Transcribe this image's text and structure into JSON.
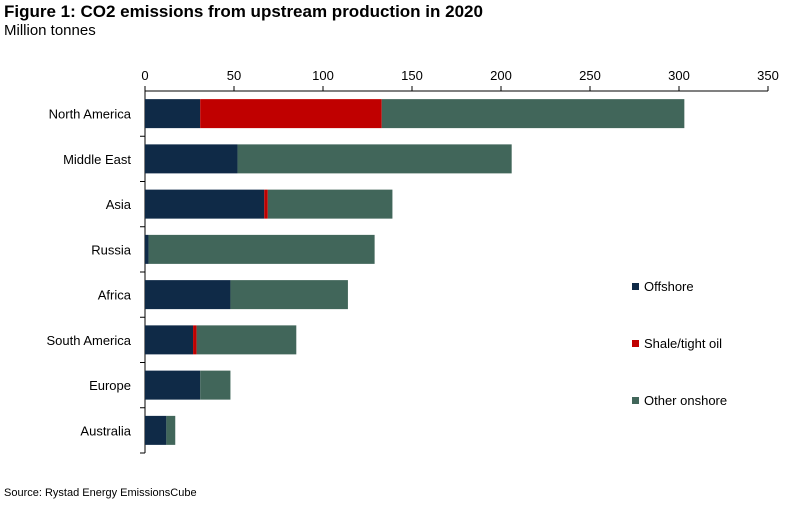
{
  "header": {
    "title": "Figure 1: CO2 emissions from upstream production in 2020",
    "subtitle": "Million tonnes"
  },
  "footer": {
    "source": "Source: Rystad Energy EmissionsCube"
  },
  "colors": {
    "offshore": "#0f2a47",
    "shale": "#c00000",
    "onshore": "#41665a",
    "axis": "#000000"
  },
  "chart_data": {
    "type": "bar",
    "orientation": "horizontal",
    "stacked": true,
    "categories": [
      "North America",
      "Middle East",
      "Asia",
      "Russia",
      "Africa",
      "South America",
      "Europe",
      "Australia"
    ],
    "series": [
      {
        "name": "Offshore",
        "values": [
          31,
          52,
          67,
          2,
          48,
          27,
          31,
          12
        ]
      },
      {
        "name": "Shale/tight oil",
        "values": [
          102,
          0,
          2,
          0,
          0,
          2,
          0,
          0
        ]
      },
      {
        "name": "Other onshore",
        "values": [
          170,
          154,
          70,
          127,
          66,
          56,
          17,
          5
        ]
      }
    ],
    "xticks": [
      "0",
      "50",
      "100",
      "150",
      "200",
      "250",
      "300",
      "350"
    ],
    "xlim": [
      0,
      350
    ],
    "xaxis_position": "top",
    "legend_position": "right",
    "grid": false
  }
}
